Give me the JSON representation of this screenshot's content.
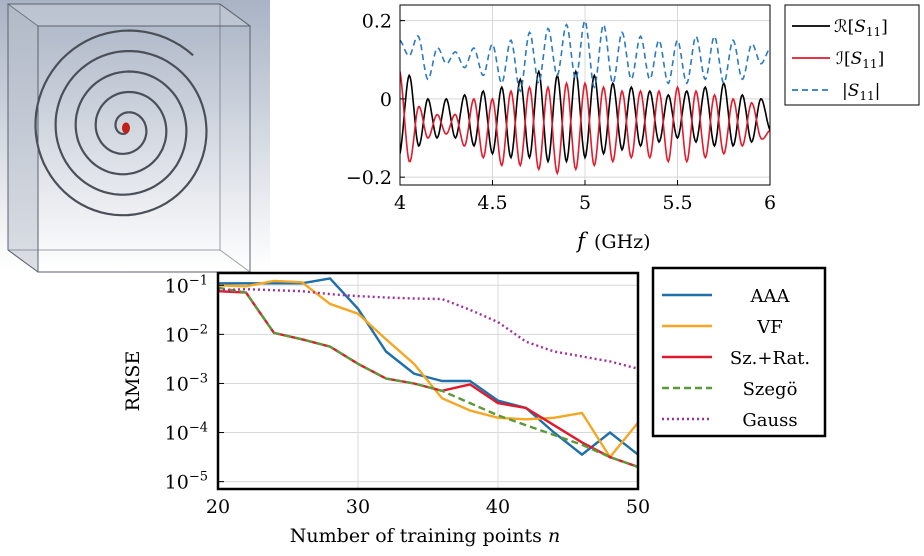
{
  "colors": {
    "black": "#000000",
    "red": "#e31a2c",
    "blue_dashed": "#2b7bc0",
    "aaa": "#1f6faa",
    "vf": "#f5a623",
    "szrat": "#e01a2c",
    "szego": "#5a9a3a",
    "gauss": "#a0309a"
  },
  "chart_data": [
    {
      "type": "line",
      "xlabel": "f (GHz)",
      "ylabel": "",
      "xlim": [
        4,
        6
      ],
      "ylim": [
        -0.22,
        0.24
      ],
      "x_ticks": [
        "4",
        "4.5",
        "5",
        "5.5",
        "6"
      ],
      "y_ticks": [
        "0.2",
        "0",
        "−0.2"
      ],
      "grid": true,
      "legend_position": "right",
      "legend": [
        "R[S11]",
        "I[S11]",
        "|S11|"
      ],
      "series": [
        {
          "name": "R[S11]",
          "style": "solid",
          "color": "#000000",
          "x": [
            4.0,
            4.05,
            4.1,
            4.15,
            4.2,
            4.25,
            4.3,
            4.35,
            4.4,
            4.45,
            4.5,
            4.55,
            4.6,
            4.65,
            4.7,
            4.75,
            4.8,
            4.85,
            4.9,
            4.95,
            5.0,
            5.05,
            5.1,
            5.15,
            5.2,
            5.25,
            5.3,
            5.35,
            5.4,
            5.45,
            5.5,
            5.55,
            5.6,
            5.65,
            5.7,
            5.75,
            5.8,
            5.85,
            5.9,
            5.95,
            6.0
          ],
          "values": [
            -0.14,
            0.06,
            -0.12,
            0.0,
            -0.1,
            0.0,
            -0.1,
            0.01,
            -0.12,
            0.02,
            -0.14,
            0.03,
            -0.15,
            0.05,
            -0.15,
            0.07,
            -0.16,
            0.06,
            -0.16,
            0.07,
            -0.15,
            0.06,
            -0.14,
            0.04,
            -0.13,
            0.03,
            -0.12,
            0.02,
            -0.11,
            0.01,
            -0.1,
            0.02,
            -0.11,
            0.03,
            -0.12,
            0.04,
            -0.12,
            0.01,
            -0.11,
            0.0,
            -0.08
          ]
        },
        {
          "name": "I[S11]",
          "style": "solid",
          "color": "#e31a2c",
          "x": [
            4.0,
            4.05,
            4.1,
            4.15,
            4.2,
            4.25,
            4.3,
            4.35,
            4.4,
            4.45,
            4.5,
            4.55,
            4.6,
            4.65,
            4.7,
            4.75,
            4.8,
            4.85,
            4.9,
            4.95,
            5.0,
            5.05,
            5.1,
            5.15,
            5.2,
            5.25,
            5.3,
            5.35,
            5.4,
            5.45,
            5.5,
            5.55,
            5.6,
            5.65,
            5.7,
            5.75,
            5.8,
            5.85,
            5.9,
            5.95,
            6.0
          ],
          "values": [
            0.07,
            -0.16,
            -0.02,
            -0.1,
            -0.04,
            -0.09,
            -0.04,
            -0.12,
            0.0,
            -0.15,
            0.0,
            -0.17,
            0.02,
            -0.17,
            0.03,
            -0.18,
            0.03,
            -0.19,
            0.04,
            -0.18,
            0.04,
            -0.17,
            0.03,
            -0.16,
            0.02,
            -0.15,
            0.02,
            -0.15,
            0.02,
            -0.16,
            0.03,
            -0.16,
            0.02,
            -0.15,
            0.01,
            -0.14,
            0.0,
            -0.12,
            -0.01,
            -0.1,
            -0.08
          ]
        },
        {
          "name": "|S11|",
          "style": "dashed",
          "color": "#2b7bc0",
          "x": [
            4.0,
            4.05,
            4.1,
            4.15,
            4.2,
            4.25,
            4.3,
            4.35,
            4.4,
            4.45,
            4.5,
            4.55,
            4.6,
            4.65,
            4.7,
            4.75,
            4.8,
            4.85,
            4.9,
            4.95,
            5.0,
            5.05,
            5.1,
            5.15,
            5.2,
            5.25,
            5.3,
            5.35,
            5.4,
            5.45,
            5.5,
            5.55,
            5.6,
            5.65,
            5.7,
            5.75,
            5.8,
            5.85,
            5.9,
            5.95,
            6.0
          ],
          "values": [
            0.15,
            0.11,
            0.16,
            0.05,
            0.13,
            0.09,
            0.12,
            0.08,
            0.13,
            0.06,
            0.14,
            0.04,
            0.15,
            0.02,
            0.17,
            0.04,
            0.18,
            0.06,
            0.19,
            0.05,
            0.2,
            0.03,
            0.19,
            0.04,
            0.17,
            0.05,
            0.16,
            0.05,
            0.15,
            0.04,
            0.15,
            0.04,
            0.16,
            0.05,
            0.16,
            0.04,
            0.15,
            0.05,
            0.14,
            0.09,
            0.13
          ]
        }
      ]
    },
    {
      "type": "line",
      "xlabel": "Number of training points n",
      "ylabel": "RMSE",
      "xlim": [
        20,
        50
      ],
      "ylim_log10": [
        -5.15,
        -0.75
      ],
      "y_scale": "log",
      "x_ticks": [
        "20",
        "30",
        "40",
        "50"
      ],
      "y_tick_exponents": [
        -1,
        -2,
        -3,
        -4,
        -5
      ],
      "y_tick_base": "10",
      "grid": true,
      "legend_position": "right",
      "series": [
        {
          "name": "AAA",
          "style": "solid",
          "color": "#1f6faa",
          "x": [
            20,
            22,
            24,
            26,
            28,
            30,
            32,
            34,
            36,
            38,
            40,
            42,
            44,
            46,
            48,
            50
          ],
          "log10": [
            -0.96,
            -0.96,
            -0.96,
            -0.96,
            -0.86,
            -1.48,
            -2.35,
            -2.8,
            -2.95,
            -2.95,
            -3.35,
            -3.5,
            -4.0,
            -4.45,
            -4.0,
            -4.45
          ]
        },
        {
          "name": "VF",
          "style": "solid",
          "color": "#f5a623",
          "x": [
            20,
            22,
            24,
            26,
            28,
            30,
            32,
            34,
            36,
            38,
            40,
            42,
            44,
            46,
            48,
            50
          ],
          "log10": [
            -1.0,
            -1.02,
            -0.91,
            -0.94,
            -1.38,
            -1.58,
            -2.1,
            -2.6,
            -3.3,
            -3.55,
            -3.7,
            -3.73,
            -3.7,
            -3.6,
            -4.5,
            -3.8
          ]
        },
        {
          "name": "Sz.+Rat.",
          "style": "solid",
          "color": "#e01a2c",
          "x": [
            20,
            22,
            24,
            26,
            28,
            30,
            32,
            34,
            36,
            38,
            40,
            42,
            44,
            46,
            48,
            50
          ],
          "log10": [
            -1.12,
            -1.15,
            -1.97,
            -2.1,
            -2.25,
            -2.6,
            -2.9,
            -3.0,
            -3.15,
            -3.02,
            -3.4,
            -3.5,
            -3.85,
            -4.2,
            -4.5,
            -4.7
          ]
        },
        {
          "name": "Szegö",
          "style": "dashed",
          "color": "#5a9a3a",
          "x": [
            20,
            22,
            24,
            26,
            28,
            30,
            32,
            34,
            36,
            38,
            40,
            42,
            44,
            46,
            48,
            50
          ],
          "log10": [
            -1.05,
            -1.15,
            -1.97,
            -2.1,
            -2.25,
            -2.6,
            -2.9,
            -3.0,
            -3.15,
            -3.4,
            -3.65,
            -3.85,
            -4.05,
            -4.25,
            -4.5,
            -4.7
          ]
        },
        {
          "name": "Gauss",
          "style": "dotted",
          "color": "#a0309a",
          "x": [
            20,
            22,
            24,
            26,
            28,
            30,
            32,
            34,
            36,
            38,
            40,
            42,
            44,
            46,
            48,
            50
          ],
          "log10": [
            -1.1,
            -1.08,
            -1.1,
            -1.12,
            -1.18,
            -1.22,
            -1.25,
            -1.27,
            -1.28,
            -1.5,
            -1.75,
            -2.15,
            -2.35,
            -2.45,
            -2.55,
            -2.7
          ]
        }
      ]
    }
  ]
}
